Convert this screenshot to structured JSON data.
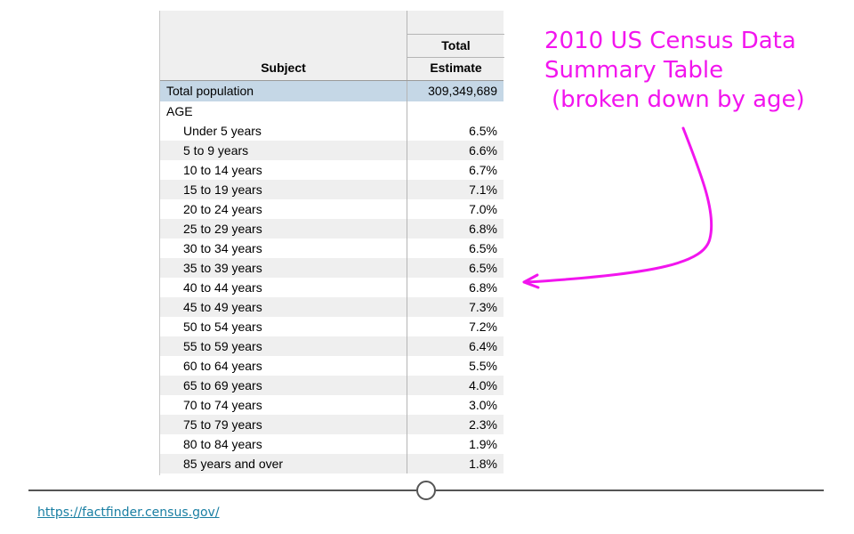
{
  "table": {
    "header": {
      "total_label": "Total",
      "estimate_label": "Estimate",
      "subject_label": "Subject"
    },
    "total_population": {
      "label": "Total population",
      "value": "309,349,689"
    },
    "group_label": "AGE",
    "rows": [
      {
        "label": "Under 5 years",
        "value": "6.5%"
      },
      {
        "label": "5 to 9 years",
        "value": "6.6%"
      },
      {
        "label": "10 to 14 years",
        "value": "6.7%"
      },
      {
        "label": "15 to 19 years",
        "value": "7.1%"
      },
      {
        "label": "20 to 24 years",
        "value": "7.0%"
      },
      {
        "label": "25 to 29 years",
        "value": "6.8%"
      },
      {
        "label": "30 to 34 years",
        "value": "6.5%"
      },
      {
        "label": "35 to 39 years",
        "value": "6.5%"
      },
      {
        "label": "40 to 44 years",
        "value": "6.8%"
      },
      {
        "label": "45 to 49 years",
        "value": "7.3%"
      },
      {
        "label": "50 to 54 years",
        "value": "7.2%"
      },
      {
        "label": "55 to 59 years",
        "value": "6.4%"
      },
      {
        "label": "60 to 64 years",
        "value": "5.5%"
      },
      {
        "label": "65 to 69 years",
        "value": "4.0%"
      },
      {
        "label": "70 to 74 years",
        "value": "3.0%"
      },
      {
        "label": "75 to 79 years",
        "value": "2.3%"
      },
      {
        "label": "80 to 84 years",
        "value": "1.9%"
      },
      {
        "label": "85 years and over",
        "value": "1.8%"
      }
    ]
  },
  "annotation": {
    "line1": "2010 US Census Data",
    "line2": "Summary Table",
    "line3": "(broken down by age)",
    "color": "#f215ee"
  },
  "source": {
    "link_text": "https://factfinder.census.gov/"
  },
  "colors": {
    "header_bg": "#efefef",
    "highlight_row_bg": "#c5d7e6",
    "link": "#1a7fa3",
    "timeline": "#555555"
  }
}
